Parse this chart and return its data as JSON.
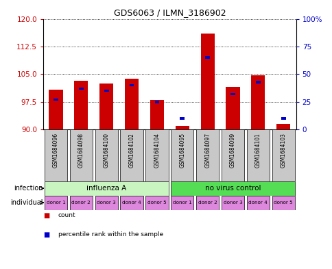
{
  "title": "GDS6063 / ILMN_3186902",
  "samples": [
    "GSM1684096",
    "GSM1684098",
    "GSM1684100",
    "GSM1684102",
    "GSM1684104",
    "GSM1684095",
    "GSM1684097",
    "GSM1684099",
    "GSM1684101",
    "GSM1684103"
  ],
  "red_values": [
    100.8,
    103.2,
    102.5,
    103.8,
    98.0,
    91.0,
    116.0,
    101.5,
    104.8,
    91.5
  ],
  "blue_pct": [
    27,
    37,
    35,
    40,
    25,
    10,
    65,
    32,
    43,
    10
  ],
  "ylim_left": [
    90,
    120
  ],
  "yticks_left": [
    90,
    97.5,
    105,
    112.5,
    120
  ],
  "ylim_right": [
    0,
    100
  ],
  "yticks_right": [
    0,
    25,
    50,
    75,
    100
  ],
  "infection_groups": [
    {
      "label": "influenza A",
      "start": 0,
      "end": 5,
      "color": "#c8f5c0"
    },
    {
      "label": "no virus control",
      "start": 5,
      "end": 10,
      "color": "#55dd55"
    }
  ],
  "individual_labels": [
    "donor 1",
    "donor 2",
    "donor 3",
    "donor 4",
    "donor 5",
    "donor 1",
    "donor 2",
    "donor 3",
    "donor 4",
    "donor 5"
  ],
  "individual_color": "#dd88dd",
  "bar_color": "#cc0000",
  "blue_color": "#0000cc",
  "sample_bg": "#c8c8c8",
  "left_tick_color": "#cc0000",
  "right_tick_color": "#0000cc"
}
